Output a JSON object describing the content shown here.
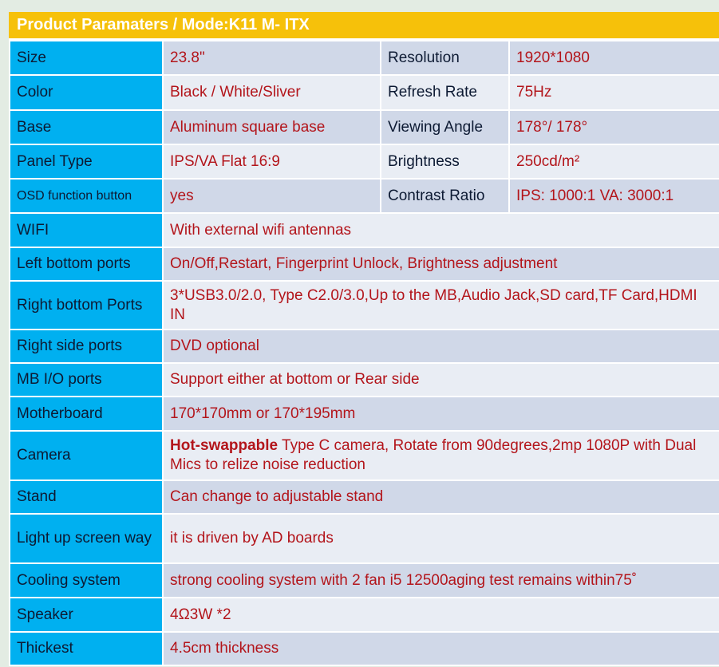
{
  "header": {
    "title": "Product Paramaters  /  Mode:K11 M- ITX"
  },
  "colors": {
    "header_bg": "#f6c10a",
    "label_bg": "#00b0f0",
    "value_text": "#b3151b",
    "row_dark": "#d0d8e8",
    "row_light": "#e9edf4"
  },
  "pair_rows": [
    {
      "label": "Size",
      "value": "23.8\"",
      "label2": "Resolution",
      "value2": "1920*1080"
    },
    {
      "label": "Color",
      "value": "Black / White/Sliver",
      "label2": "Refresh Rate",
      "value2": "75Hz"
    },
    {
      "label": "Base",
      "value": "Aluminum square base",
      "label2": "Viewing Angle",
      "value2": "178°/ 178°"
    },
    {
      "label": "Panel Type",
      "value": "IPS/VA Flat 16:9",
      "label2": "Brightness",
      "value2": "250cd/m²"
    },
    {
      "label": "OSD function button",
      "value": "yes",
      "label2": "Contrast Ratio",
      "value2": "IPS: 1000:1  VA: 3000:1"
    }
  ],
  "rows": [
    {
      "label": "WIFI",
      "value": "With external wifi antennas"
    },
    {
      "label": "Left bottom ports",
      "value": "On/Off,Restart, Fingerprint Unlock, Brightness adjustment"
    },
    {
      "label": "Right bottom Ports",
      "value": "3*USB3.0/2.0, Type C2.0/3.0,Up to the MB,Audio Jack,SD card,TF Card,HDMI IN"
    },
    {
      "label": "Right side ports",
      "value": "DVD optional"
    },
    {
      "label": "MB I/O ports",
      "value": "Support either at bottom or Rear side"
    },
    {
      "label": "Motherboard",
      "value": "170*170mm or 170*195mm"
    },
    {
      "label": "Camera",
      "value_bold": "Hot-swappable",
      "value": " Type C camera, Rotate from 90degrees,2mp 1080P with Dual Mics to relize noise reduction"
    },
    {
      "label": "Stand",
      "value": "Can change to adjustable stand"
    },
    {
      "label": "Light up screen way",
      "value": "it is driven by AD boards"
    },
    {
      "label": "Cooling system",
      "value": "strong cooling system with 2 fan i5 12500aging test remains within75˚"
    },
    {
      "label": "Speaker",
      "value": "4Ω3W *2"
    },
    {
      "label": "Thickest",
      "value": "4.5cm thickness"
    }
  ]
}
